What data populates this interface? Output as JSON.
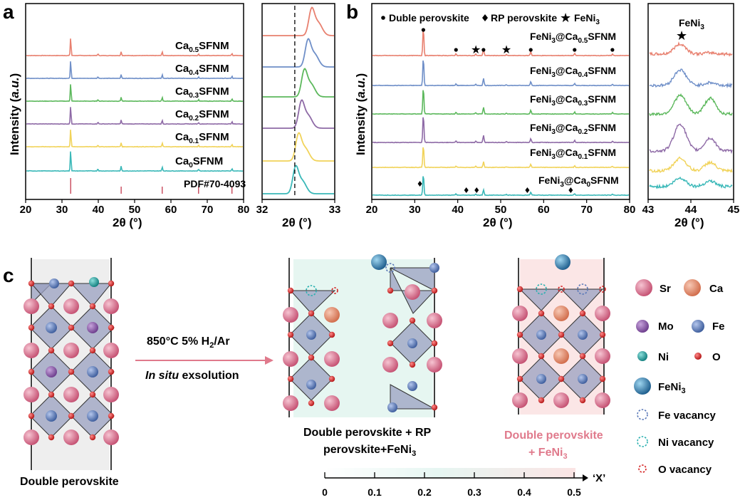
{
  "panel_labels": {
    "a": "a",
    "b": "b",
    "c": "c"
  },
  "chart_data": [
    {
      "panel": "a",
      "type": "line",
      "title": "",
      "xlabel": "2θ (°)",
      "ylabel": "Intensity (a.u.)",
      "xlim": [
        20,
        80
      ],
      "xticks": [
        "20",
        "30",
        "40",
        "50",
        "60",
        "70",
        "80"
      ],
      "series": [
        {
          "name": "Ca0.5SFNM",
          "label_main": "Ca",
          "label_sub": "0.5",
          "label_rest": "SFNM",
          "color": "#e8806f"
        },
        {
          "name": "Ca0.4SFNM",
          "label_main": "Ca",
          "label_sub": "0.4",
          "label_rest": "SFNM",
          "color": "#6f8fc8"
        },
        {
          "name": "Ca0.3SFNM",
          "label_main": "Ca",
          "label_sub": "0.3",
          "label_rest": "SFNM",
          "color": "#5cb85c"
        },
        {
          "name": "Ca0.2SFNM",
          "label_main": "Ca",
          "label_sub": "0.2",
          "label_rest": "SFNM",
          "color": "#8e6aa6"
        },
        {
          "name": "Ca0.1SFNM",
          "label_main": "Ca",
          "label_sub": "0.1",
          "label_rest": "SFNM",
          "color": "#f1d35a"
        },
        {
          "name": "Ca0SFNM",
          "label_main": "Ca",
          "label_sub": "0",
          "label_rest": "SFNM",
          "color": "#3ab8b8"
        }
      ],
      "peaks": [
        32.4,
        39.9,
        46.3,
        57.6,
        67.6,
        76.8
      ],
      "reference": {
        "name": "PDF#70-4093",
        "color": "#c8475a",
        "positions": [
          32.4,
          46.3,
          57.6,
          67.6,
          76.8
        ]
      }
    },
    {
      "panel": "a-inset",
      "type": "line",
      "xlabel": "2θ (°)",
      "xlim": [
        32,
        33
      ],
      "xticks": [
        "32",
        "33"
      ],
      "dashed_reference_x": 32.45,
      "peak_centers": [
        32.68,
        32.63,
        32.58,
        32.54,
        32.5,
        32.46
      ]
    },
    {
      "panel": "b",
      "type": "line",
      "xlabel": "2θ (°)",
      "ylabel": "Intensity (a.u.)",
      "xlim": [
        20,
        80
      ],
      "xticks": [
        "20",
        "30",
        "40",
        "50",
        "60",
        "70",
        "80"
      ],
      "legend": {
        "double": "Duble perovskite",
        "rp": "RP perovskite",
        "feni3": "FeNi"
      },
      "series": [
        {
          "name": "FeNi3@Ca0.5SFNM",
          "label_a": "FeNi",
          "sub_a": "3",
          "label_b": "@Ca",
          "sub_b": "0.5",
          "label_c": "SFNM",
          "color": "#e8806f"
        },
        {
          "name": "FeNi3@Ca0.4SFNM",
          "label_a": "FeNi",
          "sub_a": "3",
          "label_b": "@Ca",
          "sub_b": "0.4",
          "label_c": "SFNM",
          "color": "#6f8fc8"
        },
        {
          "name": "FeNi3@Ca0.3SFNM",
          "label_a": "FeNi",
          "sub_a": "3",
          "label_b": "@Ca",
          "sub_b": "0.3",
          "label_c": "SFNM",
          "color": "#5cb85c"
        },
        {
          "name": "FeNi3@Ca0.2SFNM",
          "label_a": "FeNi",
          "sub_a": "3",
          "label_b": "@Ca",
          "sub_b": "0.2",
          "label_c": "SFNM",
          "color": "#8e6aa6"
        },
        {
          "name": "FeNi3@Ca0.1SFNM",
          "label_a": "FeNi",
          "sub_a": "3",
          "label_b": "@Ca",
          "sub_b": "0.1",
          "label_c": "SFNM",
          "color": "#f1d35a"
        },
        {
          "name": "FeNi3@Ca0SFNM",
          "label_a": "FeNi",
          "sub_a": "3",
          "label_b": "@Ca",
          "sub_b": "0",
          "label_c": "SFNM",
          "color": "#3ab8b8"
        }
      ],
      "peaks": [
        32.0,
        39.6,
        44.2,
        46.0,
        51.3,
        57.0,
        67.2,
        76.0
      ],
      "top_markers": [
        {
          "x": 32.0,
          "kind": "double"
        },
        {
          "x": 39.6,
          "kind": "double"
        },
        {
          "x": 44.2,
          "kind": "feni3"
        },
        {
          "x": 46.0,
          "kind": "double"
        },
        {
          "x": 51.3,
          "kind": "feni3"
        },
        {
          "x": 57.0,
          "kind": "double"
        },
        {
          "x": 67.2,
          "kind": "double"
        },
        {
          "x": 76.0,
          "kind": "double"
        }
      ],
      "bottom_markers": [
        {
          "x": 31.2,
          "kind": "rp"
        },
        {
          "x": 42.0,
          "kind": "rp"
        },
        {
          "x": 44.4,
          "kind": "rp"
        },
        {
          "x": 56.2,
          "kind": "rp"
        },
        {
          "x": 66.3,
          "kind": "rp"
        }
      ]
    },
    {
      "panel": "b-inset",
      "type": "line",
      "title": "FeNi",
      "title_sub": "3",
      "xlabel": "2θ (°)",
      "xlim": [
        43,
        45
      ],
      "xticks": [
        "43",
        "44",
        "45"
      ]
    }
  ],
  "schematic": {
    "legend": {
      "sr": "Sr",
      "ca": "Ca",
      "mo": "Mo",
      "fe": "Fe",
      "ni": "Ni",
      "o": "O",
      "feni3": "FeNi",
      "feni3_sub": "3",
      "fe_vac": "Fe vacancy",
      "ni_vac": "Ni vacancy",
      "o_vac": "O vacancy"
    },
    "colors": {
      "sr": "#d46a85",
      "ca": "#e0866a",
      "mo": "#8a5aa8",
      "fe": "#5a78b8",
      "ni": "#1a9a9a",
      "o": "#d42020",
      "feni3": "#2a7aa8",
      "octa": "#9aa0c0"
    },
    "left_caption": "Double perovskite",
    "arrow_line1": "850°C 5% H",
    "arrow_line1_sub": "2",
    "arrow_line1_end": "/Ar",
    "arrow_line2_a": "In situ",
    "arrow_line2_b": " exsolution",
    "mid_caption_1": "Double perovskite + RP",
    "mid_caption_2": "perovskite+FeNi",
    "mid_caption_sub": "3",
    "right_caption_1": "Double perovskite",
    "right_caption_2": "+ FeNi",
    "right_caption_sub": "3",
    "scale_ticks": [
      "0",
      "0.1",
      "0.2",
      "0.3",
      "0.4",
      "0.5"
    ],
    "scale_label": "‘X’"
  }
}
